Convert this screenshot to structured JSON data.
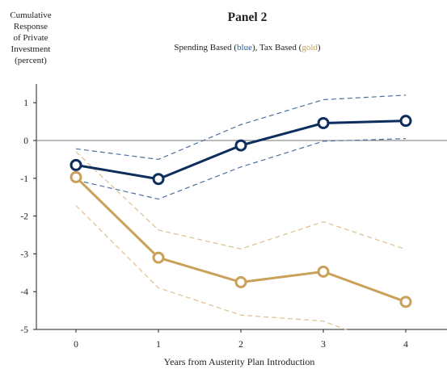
{
  "chart_data": {
    "type": "line",
    "title": "Panel 2",
    "subtitle": {
      "prefix": "Spending Based (",
      "blue_word": "blue",
      "middle": "), Tax Based (",
      "gold_word": "gold",
      "suffix": ")"
    },
    "ylabel_lines": [
      "Cumulative",
      "Response",
      "of Private",
      "Investment",
      "(percent)"
    ],
    "xlabel": "Years from Austerity Plan Introduction",
    "x": [
      0,
      1,
      2,
      3,
      4
    ],
    "x_tick_labels": [
      "0",
      "1",
      "2",
      "3",
      "4"
    ],
    "y_ticks": [
      1,
      0,
      -1,
      -2,
      -3,
      -4,
      -5
    ],
    "y_tick_labels": [
      "1",
      "0",
      "-1",
      "-2",
      "-3",
      "-4",
      "-5"
    ],
    "xlim": [
      -0.6,
      4.6
    ],
    "ylim": [
      -5,
      1.5
    ],
    "grid": false,
    "legend": "none",
    "zero_line": true,
    "series": [
      {
        "name": "Spending Based",
        "color": "#0d2d5c",
        "values": [
          -0.65,
          -1.02,
          -0.13,
          0.46,
          0.52
        ],
        "lower": [
          -1.05,
          -1.55,
          -0.7,
          -0.02,
          0.05
        ],
        "upper": [
          -0.22,
          -0.5,
          0.42,
          1.08,
          1.2
        ]
      },
      {
        "name": "Tax Based",
        "color": "#c9a15a",
        "values": [
          -0.97,
          -3.1,
          -3.75,
          -3.47,
          -4.27
        ],
        "lower": [
          -1.72,
          -3.9,
          -4.62,
          -4.78,
          -5.6
        ],
        "upper": [
          -0.3,
          -2.37,
          -2.87,
          -2.15,
          -2.88
        ]
      }
    ]
  }
}
